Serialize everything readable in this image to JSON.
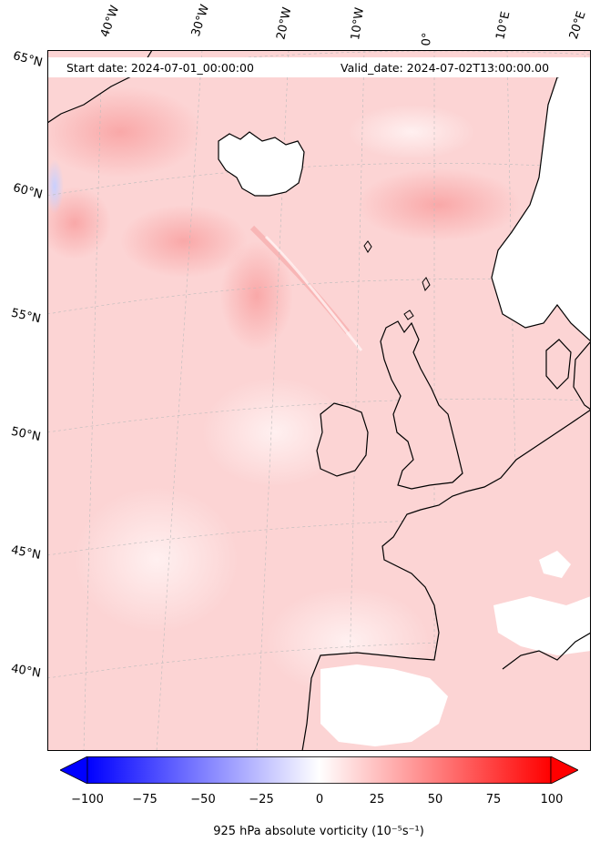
{
  "header": {
    "start_date": "Start date: 2024-07-01_00:00:00",
    "valid_date": "Valid_date: 2024-07-02T13:00:00.00"
  },
  "longitude_labels": [
    "40°W",
    "30°W",
    "20°W",
    "10°W",
    "0°",
    "10°E",
    "20°E"
  ],
  "latitude_labels": [
    "65°N",
    "60°N",
    "55°N",
    "50°N",
    "45°N",
    "40°N"
  ],
  "colorbar": {
    "label": "925 hPa absolute vorticity (10⁻⁵s⁻¹)",
    "ticks": [
      "−100",
      "−75",
      "−50",
      "−25",
      "0",
      "25",
      "50",
      "75",
      "100"
    ],
    "min": -100,
    "max": 100,
    "negative_color": "#0000ff",
    "zero_color": "#ffffff",
    "positive_color": "#ff0000",
    "extend": "both"
  },
  "map": {
    "projection": "conic",
    "ocean_field_color": "#fcd3d3",
    "coastline_color": "#000000",
    "gridline_style": "dashed light grey"
  }
}
